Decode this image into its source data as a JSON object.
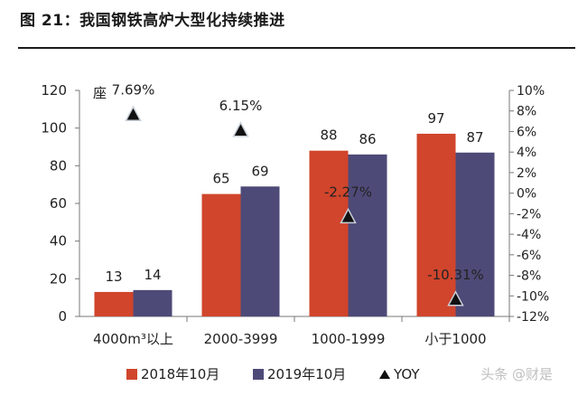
{
  "header": {
    "title": "图 21：我国钢铁高炉大型化持续推进"
  },
  "chart_data": {
    "type": "bar",
    "categories": [
      "4000m³以上",
      "2000-3999",
      "1000-1999",
      "小于1000"
    ],
    "series": [
      {
        "name": "2018年10月",
        "values": [
          13,
          65,
          88,
          97
        ],
        "color": "#d0452c"
      },
      {
        "name": "2019年10月",
        "values": [
          14,
          69,
          86,
          87
        ],
        "color": "#4e4a78"
      }
    ],
    "yoy": {
      "name": "YOY",
      "values": [
        7.69,
        6.15,
        -2.27,
        -10.31
      ],
      "labels": [
        "7.69%",
        "6.15%",
        "-2.27%",
        "-10.31%"
      ]
    },
    "bar_labels": [
      [
        "13",
        "65",
        "88",
        "97"
      ],
      [
        "14",
        "69",
        "86",
        "87"
      ]
    ],
    "unit_prefix": "座",
    "ylim": [
      0,
      120
    ],
    "y_ticks": [
      "0",
      "20",
      "40",
      "60",
      "80",
      "100",
      "120"
    ],
    "y2lim": [
      -12,
      10
    ],
    "y2_ticks": [
      "-12%",
      "-10%",
      "-8%",
      "-6%",
      "-4%",
      "-2%",
      "0%",
      "2%",
      "4%",
      "6%",
      "8%",
      "10%"
    ],
    "legend_position": "bottom",
    "grid": false
  },
  "watermark": "头条 @财是"
}
